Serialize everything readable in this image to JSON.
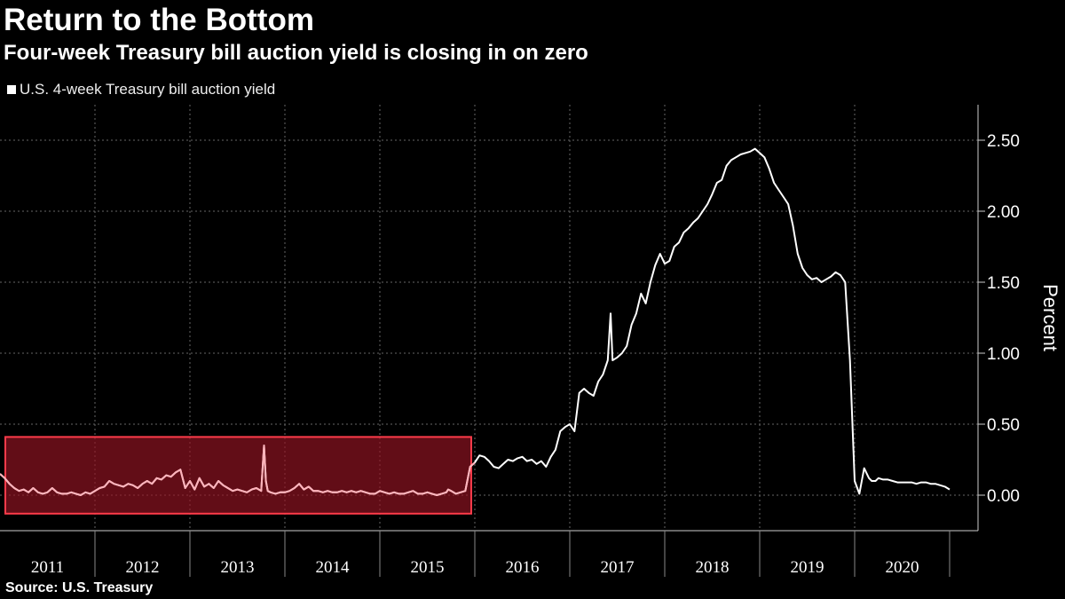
{
  "chart_data": {
    "type": "line",
    "title": "Return to the Bottom",
    "subtitle": "Four-week Treasury bill auction yield is closing in on zero",
    "ylabel": "Percent",
    "xlabel": "",
    "ylim": [
      -0.25,
      2.75
    ],
    "xlim": [
      2011.0,
      2021.0
    ],
    "yticks": [
      0.0,
      0.5,
      1.0,
      1.5,
      2.0,
      2.5
    ],
    "ytick_labels": [
      "0.00",
      "0.50",
      "1.00",
      "1.50",
      "2.00",
      "2.50"
    ],
    "categories": [
      "2011",
      "2012",
      "2013",
      "2014",
      "2015",
      "2016",
      "2017",
      "2018",
      "2019",
      "2020"
    ],
    "grid": true,
    "legend_position": "top-left",
    "source": "Source: U.S. Treasury",
    "series": [
      {
        "name": "U.S. 4-week Treasury bill auction yield",
        "color": "#ffffff",
        "x": [
          2011.0,
          2011.05,
          2011.1,
          2011.15,
          2011.2,
          2011.25,
          2011.3,
          2011.35,
          2011.4,
          2011.45,
          2011.5,
          2011.55,
          2011.6,
          2011.65,
          2011.7,
          2011.75,
          2011.8,
          2011.85,
          2011.9,
          2011.95,
          2012.0,
          2012.05,
          2012.1,
          2012.15,
          2012.2,
          2012.25,
          2012.3,
          2012.35,
          2012.4,
          2012.45,
          2012.5,
          2012.55,
          2012.6,
          2012.65,
          2012.7,
          2012.75,
          2012.8,
          2012.85,
          2012.9,
          2012.95,
          2013.0,
          2013.05,
          2013.1,
          2013.15,
          2013.2,
          2013.25,
          2013.3,
          2013.35,
          2013.4,
          2013.45,
          2013.5,
          2013.55,
          2013.6,
          2013.65,
          2013.7,
          2013.75,
          2013.78,
          2013.8,
          2013.82,
          2013.85,
          2013.9,
          2013.95,
          2014.0,
          2014.05,
          2014.1,
          2014.15,
          2014.2,
          2014.25,
          2014.3,
          2014.35,
          2014.4,
          2014.45,
          2014.5,
          2014.55,
          2014.6,
          2014.65,
          2014.7,
          2014.75,
          2014.8,
          2014.85,
          2014.9,
          2014.95,
          2015.0,
          2015.05,
          2015.1,
          2015.15,
          2015.2,
          2015.25,
          2015.3,
          2015.35,
          2015.4,
          2015.45,
          2015.5,
          2015.55,
          2015.6,
          2015.65,
          2015.7,
          2015.72,
          2015.75,
          2015.8,
          2015.85,
          2015.9,
          2015.95,
          2016.0,
          2016.05,
          2016.1,
          2016.15,
          2016.2,
          2016.25,
          2016.3,
          2016.35,
          2016.4,
          2016.45,
          2016.5,
          2016.55,
          2016.6,
          2016.65,
          2016.7,
          2016.75,
          2016.8,
          2016.85,
          2016.9,
          2016.95,
          2017.0,
          2017.05,
          2017.1,
          2017.15,
          2017.2,
          2017.25,
          2017.3,
          2017.35,
          2017.4,
          2017.43,
          2017.45,
          2017.5,
          2017.55,
          2017.6,
          2017.65,
          2017.7,
          2017.75,
          2017.8,
          2017.85,
          2017.9,
          2017.95,
          2018.0,
          2018.05,
          2018.1,
          2018.15,
          2018.2,
          2018.25,
          2018.3,
          2018.35,
          2018.4,
          2018.45,
          2018.5,
          2018.55,
          2018.6,
          2018.65,
          2018.7,
          2018.75,
          2018.8,
          2018.85,
          2018.9,
          2018.95,
          2019.0,
          2019.05,
          2019.1,
          2019.15,
          2019.2,
          2019.25,
          2019.3,
          2019.35,
          2019.4,
          2019.45,
          2019.5,
          2019.55,
          2019.6,
          2019.65,
          2019.7,
          2019.75,
          2019.8,
          2019.85,
          2019.9,
          2019.95,
          2020.0,
          2020.05,
          2020.1,
          2020.15,
          2020.18,
          2020.22,
          2020.25,
          2020.3,
          2020.35,
          2020.4,
          2020.45,
          2020.5,
          2020.55,
          2020.6,
          2020.65,
          2020.7,
          2020.75,
          2020.8,
          2020.85,
          2020.9,
          2020.95,
          2021.0
        ],
        "y": [
          0.15,
          0.12,
          0.08,
          0.05,
          0.03,
          0.04,
          0.02,
          0.05,
          0.02,
          0.01,
          0.02,
          0.05,
          0.02,
          0.01,
          0.01,
          0.02,
          0.01,
          0.0,
          0.02,
          0.01,
          0.03,
          0.05,
          0.06,
          0.1,
          0.08,
          0.07,
          0.06,
          0.08,
          0.07,
          0.05,
          0.08,
          0.1,
          0.08,
          0.12,
          0.11,
          0.14,
          0.13,
          0.16,
          0.18,
          0.05,
          0.1,
          0.04,
          0.12,
          0.06,
          0.08,
          0.05,
          0.1,
          0.07,
          0.05,
          0.03,
          0.04,
          0.03,
          0.02,
          0.04,
          0.05,
          0.03,
          0.35,
          0.1,
          0.03,
          0.02,
          0.01,
          0.02,
          0.02,
          0.03,
          0.05,
          0.08,
          0.04,
          0.06,
          0.03,
          0.03,
          0.02,
          0.03,
          0.02,
          0.02,
          0.03,
          0.02,
          0.03,
          0.02,
          0.03,
          0.02,
          0.01,
          0.01,
          0.03,
          0.02,
          0.01,
          0.02,
          0.01,
          0.01,
          0.02,
          0.03,
          0.01,
          0.01,
          0.02,
          0.01,
          0.0,
          0.01,
          0.02,
          0.04,
          0.03,
          0.01,
          0.02,
          0.03,
          0.2,
          0.23,
          0.28,
          0.27,
          0.24,
          0.2,
          0.19,
          0.22,
          0.25,
          0.24,
          0.26,
          0.27,
          0.24,
          0.25,
          0.22,
          0.24,
          0.2,
          0.27,
          0.32,
          0.45,
          0.48,
          0.5,
          0.45,
          0.72,
          0.75,
          0.72,
          0.7,
          0.8,
          0.85,
          0.95,
          1.28,
          0.95,
          0.97,
          1.0,
          1.05,
          1.2,
          1.28,
          1.42,
          1.35,
          1.5,
          1.62,
          1.7,
          1.63,
          1.65,
          1.75,
          1.78,
          1.85,
          1.88,
          1.92,
          1.95,
          2.0,
          2.05,
          2.12,
          2.2,
          2.22,
          2.32,
          2.36,
          2.38,
          2.4,
          2.41,
          2.42,
          2.44,
          2.41,
          2.38,
          2.3,
          2.2,
          2.15,
          2.1,
          2.05,
          1.9,
          1.7,
          1.6,
          1.55,
          1.52,
          1.53,
          1.5,
          1.52,
          1.54,
          1.57,
          1.55,
          1.5,
          0.95,
          0.1,
          0.01,
          0.19,
          0.12,
          0.1,
          0.1,
          0.12,
          0.11,
          0.11,
          0.1,
          0.09,
          0.09,
          0.09,
          0.09,
          0.08,
          0.09,
          0.09,
          0.08,
          0.08,
          0.07,
          0.06,
          0.04
        ]
      }
    ],
    "highlight": {
      "x_range": [
        2011.0,
        2016.0
      ],
      "y_range": [
        -0.13,
        0.41
      ],
      "color": "#ff3b4a"
    }
  }
}
